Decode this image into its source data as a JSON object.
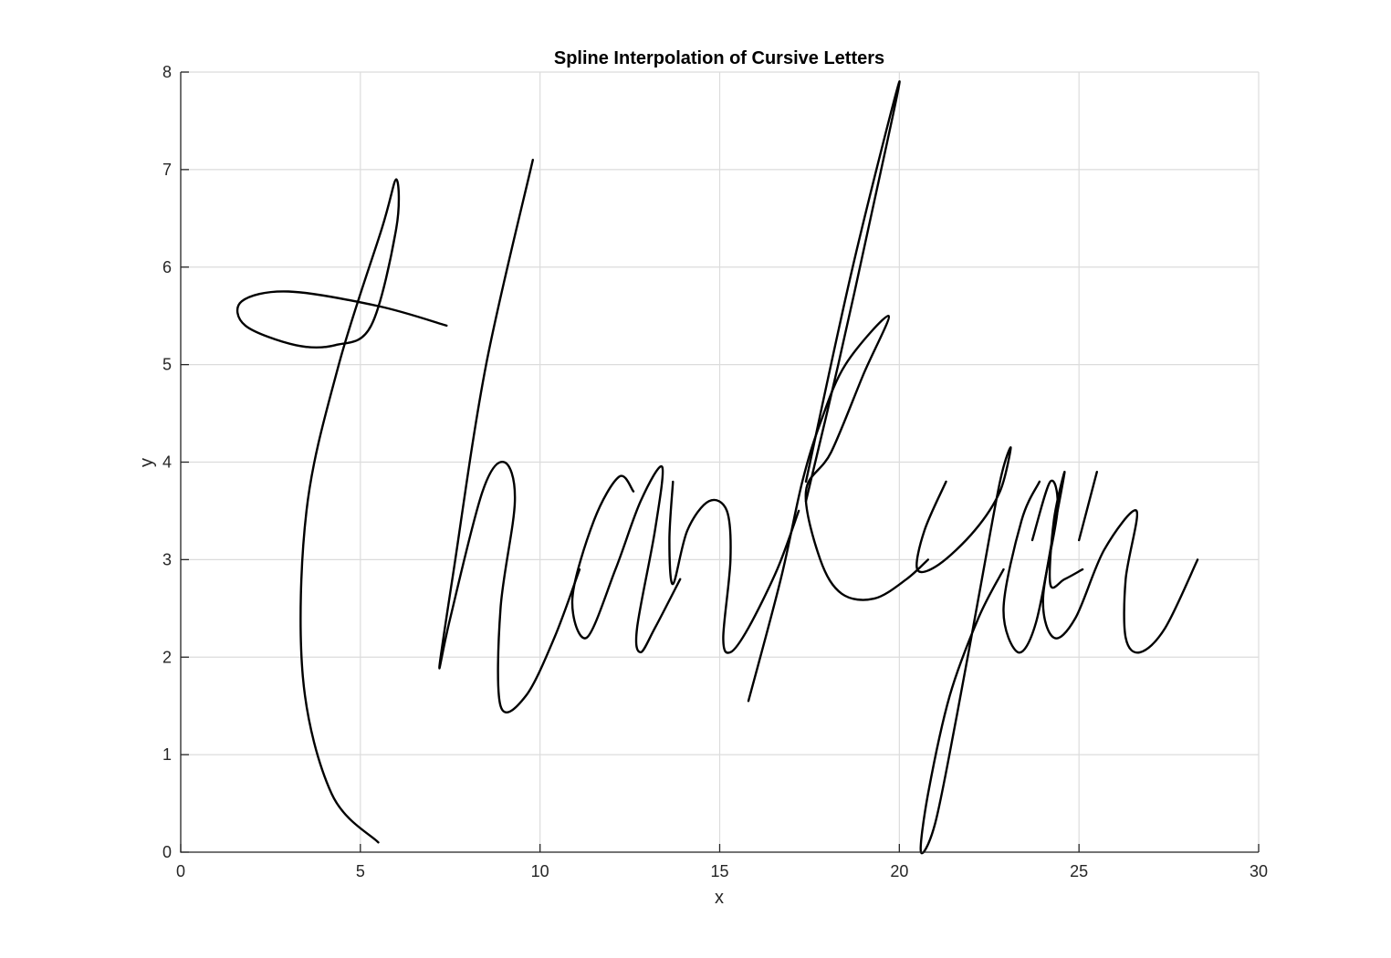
{
  "chart_data": {
    "type": "line",
    "title": "Spline Interpolation of Cursive Letters",
    "xlabel": "x",
    "ylabel": "y",
    "xlim": [
      0,
      30
    ],
    "ylim": [
      0,
      8
    ],
    "xticks": [
      0,
      5,
      10,
      15,
      20,
      25,
      30
    ],
    "yticks": [
      0,
      1,
      2,
      3,
      4,
      5,
      6,
      7,
      8
    ],
    "grid": true,
    "line_color": "#000000",
    "series": [
      {
        "points": [
          [
            5.5,
            0.1
          ],
          [
            4.2,
            0.6
          ],
          [
            3.4,
            1.8
          ],
          [
            3.5,
            3.5
          ],
          [
            4.4,
            5.0
          ],
          [
            5.6,
            6.4
          ],
          [
            6.0,
            6.9
          ],
          [
            6.0,
            6.4
          ],
          [
            5.3,
            5.4
          ],
          [
            4.3,
            5.2
          ],
          [
            3.2,
            5.2
          ],
          [
            1.8,
            5.4
          ],
          [
            1.7,
            5.65
          ],
          [
            3.0,
            5.75
          ],
          [
            5.5,
            5.6
          ],
          [
            7.4,
            5.4
          ]
        ]
      },
      {
        "points": [
          [
            9.8,
            7.1
          ],
          [
            8.5,
            5.0
          ],
          [
            7.6,
            2.9
          ],
          [
            7.2,
            1.9
          ],
          [
            7.5,
            2.4
          ],
          [
            8.4,
            3.7
          ],
          [
            9.0,
            4.0
          ],
          [
            9.3,
            3.6
          ],
          [
            8.9,
            2.5
          ],
          [
            8.9,
            1.5
          ],
          [
            9.6,
            1.6
          ],
          [
            10.4,
            2.2
          ],
          [
            11.1,
            2.9
          ]
        ]
      },
      {
        "points": [
          [
            12.6,
            3.7
          ],
          [
            12.2,
            3.85
          ],
          [
            11.5,
            3.4
          ],
          [
            10.9,
            2.6
          ],
          [
            11.3,
            2.2
          ],
          [
            12.1,
            2.9
          ],
          [
            12.8,
            3.6
          ],
          [
            13.4,
            3.95
          ],
          [
            13.2,
            3.3
          ],
          [
            12.7,
            2.3
          ],
          [
            12.8,
            2.05
          ],
          [
            13.2,
            2.3
          ],
          [
            13.9,
            2.8
          ]
        ]
      },
      {
        "points": [
          [
            13.7,
            3.8
          ],
          [
            13.6,
            3.2
          ],
          [
            13.7,
            2.75
          ],
          [
            14.1,
            3.3
          ],
          [
            14.7,
            3.6
          ],
          [
            15.2,
            3.5
          ],
          [
            15.3,
            3.0
          ],
          [
            15.1,
            2.2
          ],
          [
            15.3,
            2.05
          ],
          [
            15.8,
            2.3
          ],
          [
            16.6,
            2.9
          ],
          [
            17.2,
            3.5
          ]
        ]
      },
      {
        "points": [
          [
            15.8,
            1.55
          ],
          [
            16.7,
            2.8
          ],
          [
            17.3,
            3.8
          ],
          [
            17.8,
            4.4
          ],
          [
            18.5,
            5.0
          ],
          [
            19.7,
            5.5
          ],
          [
            19.0,
            4.9
          ],
          [
            18.1,
            4.1
          ],
          [
            17.4,
            3.7
          ],
          [
            17.8,
            3.0
          ],
          [
            18.4,
            2.65
          ],
          [
            19.3,
            2.6
          ],
          [
            20.2,
            2.8
          ],
          [
            20.8,
            3.0
          ]
        ]
      },
      {
        "points": [
          [
            17.4,
            3.8
          ],
          [
            18.7,
            6.0
          ],
          [
            20.0,
            7.9
          ],
          [
            19.2,
            6.5
          ],
          [
            18.3,
            5.0
          ],
          [
            17.4,
            3.6
          ]
        ]
      },
      {
        "points": [
          [
            21.3,
            3.8
          ],
          [
            20.7,
            3.3
          ],
          [
            20.5,
            2.9
          ],
          [
            21.1,
            2.95
          ],
          [
            22.1,
            3.3
          ],
          [
            22.8,
            3.7
          ],
          [
            23.1,
            4.15
          ],
          [
            22.8,
            3.8
          ],
          [
            22.2,
            2.6
          ],
          [
            21.6,
            1.4
          ],
          [
            21.0,
            0.3
          ],
          [
            20.6,
            0.0
          ],
          [
            20.8,
            0.6
          ],
          [
            21.4,
            1.6
          ],
          [
            22.2,
            2.4
          ],
          [
            22.9,
            2.9
          ]
        ]
      },
      {
        "points": [
          [
            23.9,
            3.8
          ],
          [
            23.4,
            3.4
          ],
          [
            22.9,
            2.5
          ],
          [
            23.3,
            2.05
          ],
          [
            23.8,
            2.35
          ],
          [
            24.3,
            3.3
          ],
          [
            24.6,
            3.9
          ],
          [
            24.3,
            3.4
          ],
          [
            24.2,
            2.75
          ],
          [
            24.6,
            2.8
          ],
          [
            25.1,
            2.9
          ]
        ]
      },
      {
        "points": [
          [
            23.7,
            3.2
          ],
          [
            24.2,
            3.8
          ],
          [
            24.4,
            3.5
          ],
          [
            24.0,
            2.6
          ],
          [
            24.3,
            2.2
          ],
          [
            24.9,
            2.4
          ],
          [
            25.7,
            3.1
          ],
          [
            26.6,
            3.5
          ],
          [
            26.3,
            2.8
          ],
          [
            26.3,
            2.2
          ],
          [
            26.7,
            2.05
          ],
          [
            27.4,
            2.3
          ],
          [
            28.3,
            3.0
          ]
        ]
      },
      {
        "points": [
          [
            25.5,
            3.9
          ],
          [
            25.0,
            3.2
          ]
        ]
      }
    ]
  }
}
